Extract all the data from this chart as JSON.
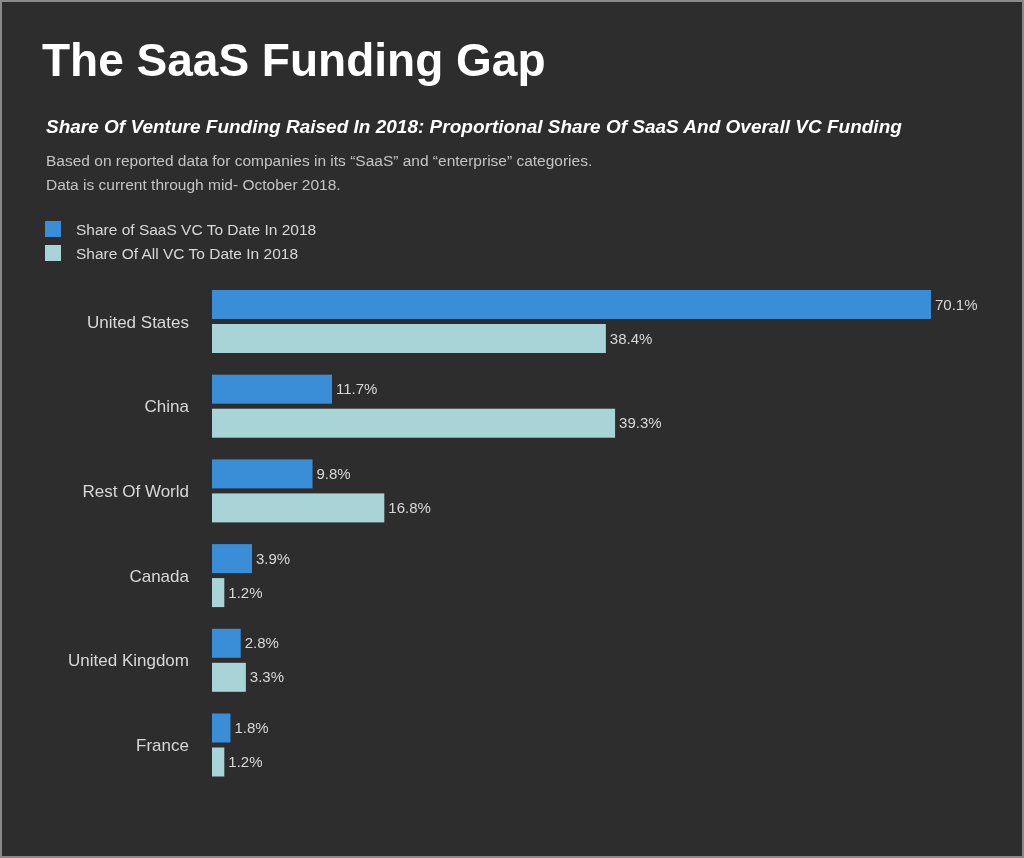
{
  "chart_data": {
    "type": "bar",
    "orientation": "horizontal",
    "title": "The SaaS Funding Gap",
    "subtitle": "Share Of Venture Funding Raised In 2018: Proportional Share Of SaaS And Overall VC Funding",
    "annotations": [
      "Based on reported data for companies in its “SaaS” and “enterprise” categories. Data is current through mid- October 2018."
    ],
    "categories": [
      "United States",
      "China",
      "Rest Of World",
      "Canada",
      "United Kingdom",
      "France"
    ],
    "series": [
      {
        "name": "Share of SaaS VC To Date In 2018",
        "color": "#3a8ed8",
        "values": [
          70.1,
          11.7,
          9.8,
          3.9,
          2.8,
          1.8
        ],
        "value_labels": [
          "70.1%",
          "11.7%",
          "9.8%",
          "3.9%",
          "2.8%",
          "1.8%"
        ]
      },
      {
        "name": "Share Of All VC To Date In 2018",
        "color": "#a9d4d7",
        "values": [
          38.4,
          39.3,
          16.8,
          1.2,
          3.3,
          1.2
        ],
        "value_labels": [
          "38.4%",
          "39.3%",
          "16.8%",
          "1.2%",
          "3.3%",
          "1.2%"
        ]
      }
    ],
    "legend": "top left"
  }
}
